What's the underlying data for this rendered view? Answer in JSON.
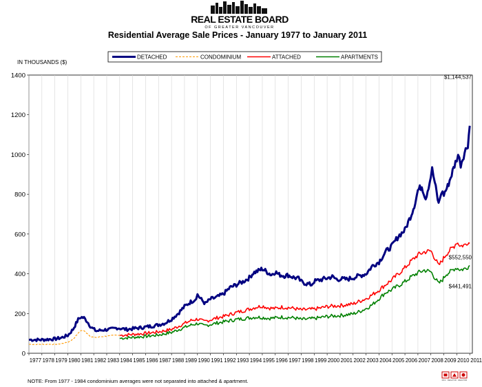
{
  "logo": {
    "main_text": "REAL ESTATE BOARD",
    "sub_text": "OF GREATER VANCOUVER"
  },
  "footer_logos": [
    "MLS",
    "REALTOR",
    "REALTOR"
  ],
  "chart_data": {
    "type": "line",
    "title": "Residential Average Sale Prices  -  January 1977 to January 2011",
    "ylabel": "IN THOUSANDS ($)",
    "xlabel": "",
    "ylim": [
      0,
      1400
    ],
    "yticks": [
      0,
      200,
      400,
      600,
      800,
      1000,
      1200,
      1400
    ],
    "xlim": [
      1977,
      2011.2
    ],
    "xticks": [
      "1977",
      "1978",
      "1979",
      "1980",
      "1981",
      "1982",
      "1983",
      "1984",
      "1985",
      "1986",
      "1987",
      "1988",
      "1989",
      "1990",
      "1991",
      "1992",
      "1993",
      "1994",
      "1995",
      "1996",
      "1997",
      "1998",
      "1999",
      "2000",
      "2001",
      "2002",
      "2003",
      "2004",
      "2005",
      "2006",
      "2007",
      "2008",
      "2009",
      "2010",
      "2011"
    ],
    "grid": "vertical",
    "legend_position": "top",
    "series": [
      {
        "name": "DETACHED",
        "color": "#000080",
        "style": "solid-thick",
        "x": [
          1977.0,
          1978.0,
          1979.0,
          1979.5,
          1980.0,
          1980.4,
          1980.8,
          1981.0,
          1981.25,
          1981.5,
          1981.8,
          1982.2,
          1982.8,
          1983.3,
          1983.8,
          1984.5,
          1985.2,
          1986.0,
          1986.8,
          1987.5,
          1988.0,
          1988.5,
          1989.0,
          1989.4,
          1989.8,
          1990.0,
          1990.3,
          1990.6,
          1991.0,
          1991.5,
          1992.0,
          1992.5,
          1993.0,
          1993.5,
          1994.0,
          1994.3,
          1994.7,
          1995.0,
          1995.3,
          1995.7,
          1996.0,
          1996.3,
          1996.7,
          1997.0,
          1997.4,
          1997.8,
          1998.0,
          1998.4,
          1998.8,
          1999.0,
          1999.5,
          2000.0,
          2000.4,
          2000.8,
          2001.0,
          2001.5,
          2002.0,
          2002.5,
          2003.0,
          2003.5,
          2004.0,
          2004.5,
          2005.0,
          2005.5,
          2006.0,
          2006.5,
          2006.8,
          2007.0,
          2007.3,
          2007.6,
          2007.9,
          2008.1,
          2008.3,
          2008.6,
          2008.8,
          2009.0,
          2009.3,
          2009.6,
          2009.9,
          2010.1,
          2010.3,
          2010.6,
          2010.85,
          2011.0
        ],
        "values": [
          68,
          68,
          72,
          78,
          90,
          120,
          170,
          182,
          178,
          160,
          130,
          112,
          118,
          120,
          128,
          120,
          125,
          132,
          140,
          152,
          172,
          200,
          235,
          255,
          270,
          295,
          270,
          250,
          272,
          282,
          298,
          330,
          345,
          360,
          380,
          405,
          415,
          425,
          412,
          395,
          410,
          395,
          390,
          393,
          382,
          375,
          360,
          350,
          345,
          362,
          370,
          378,
          385,
          370,
          375,
          372,
          380,
          390,
          400,
          440,
          460,
          510,
          540,
          590,
          620,
          700,
          760,
          820,
          840,
          780,
          860,
          925,
          860,
          750,
          810,
          800,
          840,
          900,
          960,
          1000,
          950,
          1010,
          1050,
          1144.5
        ],
        "end_label": "$1,144,537"
      },
      {
        "name": "CONDOMINIUM",
        "color": "#ff9900",
        "style": "dashed",
        "x": [
          1977.0,
          1978.0,
          1979.0,
          1979.5,
          1980.0,
          1980.4,
          1980.8,
          1981.0,
          1981.25,
          1981.5,
          1981.8,
          1982.2,
          1982.8,
          1983.3,
          1983.8,
          1984.0
        ],
        "values": [
          45,
          45,
          45,
          48,
          55,
          70,
          100,
          115,
          112,
          100,
          82,
          80,
          85,
          88,
          92,
          90
        ]
      },
      {
        "name": "ATTACHED",
        "color": "#ff0000",
        "style": "solid",
        "x": [
          1984.0,
          1985.0,
          1986.0,
          1987.0,
          1988.0,
          1988.5,
          1989.0,
          1989.5,
          1990.0,
          1990.5,
          1991.0,
          1991.5,
          1992.0,
          1993.0,
          1994.0,
          1994.5,
          1995.0,
          1995.5,
          1996.0,
          1996.5,
          1997.0,
          1997.5,
          1998.0,
          1998.5,
          1999.0,
          1999.5,
          2000.0,
          2001.0,
          2002.0,
          2002.5,
          2003.0,
          2003.5,
          2004.0,
          2004.5,
          2005.0,
          2005.5,
          2006.0,
          2006.5,
          2007.0,
          2007.5,
          2008.0,
          2008.3,
          2008.6,
          2008.9,
          2009.2,
          2009.5,
          2009.8,
          2010.0,
          2010.3,
          2010.6,
          2010.85,
          2011.0
        ],
        "values": [
          90,
          95,
          100,
          108,
          120,
          135,
          150,
          165,
          172,
          160,
          168,
          178,
          185,
          205,
          222,
          232,
          238,
          228,
          225,
          232,
          230,
          225,
          218,
          220,
          222,
          228,
          235,
          240,
          248,
          262,
          275,
          295,
          318,
          345,
          370,
          400,
          430,
          465,
          495,
          510,
          515,
          480,
          440,
          470,
          500,
          520,
          540,
          560,
          540,
          545,
          560,
          552.6
        ],
        "end_label": "$552,550"
      },
      {
        "name": "APARTMENTS",
        "color": "#008000",
        "style": "solid",
        "x": [
          1984.0,
          1985.0,
          1986.0,
          1987.0,
          1988.0,
          1988.5,
          1989.0,
          1989.5,
          1990.0,
          1990.5,
          1991.0,
          1991.5,
          1992.0,
          1993.0,
          1994.0,
          1994.5,
          1995.0,
          1995.5,
          1996.0,
          1996.5,
          1997.0,
          1997.5,
          1998.0,
          1998.5,
          1999.0,
          1999.5,
          2000.0,
          2001.0,
          2002.0,
          2002.5,
          2003.0,
          2003.5,
          2004.0,
          2004.5,
          2005.0,
          2005.5,
          2006.0,
          2006.5,
          2007.0,
          2007.5,
          2008.0,
          2008.3,
          2008.6,
          2008.9,
          2009.2,
          2009.5,
          2009.8,
          2010.0,
          2010.3,
          2010.6,
          2010.85,
          2011.0
        ],
        "values": [
          75,
          80,
          85,
          92,
          105,
          118,
          130,
          142,
          150,
          138,
          145,
          152,
          158,
          170,
          178,
          182,
          180,
          176,
          178,
          182,
          180,
          178,
          170,
          172,
          175,
          180,
          185,
          190,
          198,
          210,
          225,
          245,
          275,
          305,
          320,
          340,
          360,
          385,
          405,
          418,
          410,
          380,
          350,
          370,
          400,
          410,
          425,
          430,
          420,
          425,
          435,
          441.5
        ],
        "end_label": "$441,491"
      }
    ],
    "note": "NOTE:  From 1977 - 1984 condominium averages were not separated into attached & apartment."
  }
}
